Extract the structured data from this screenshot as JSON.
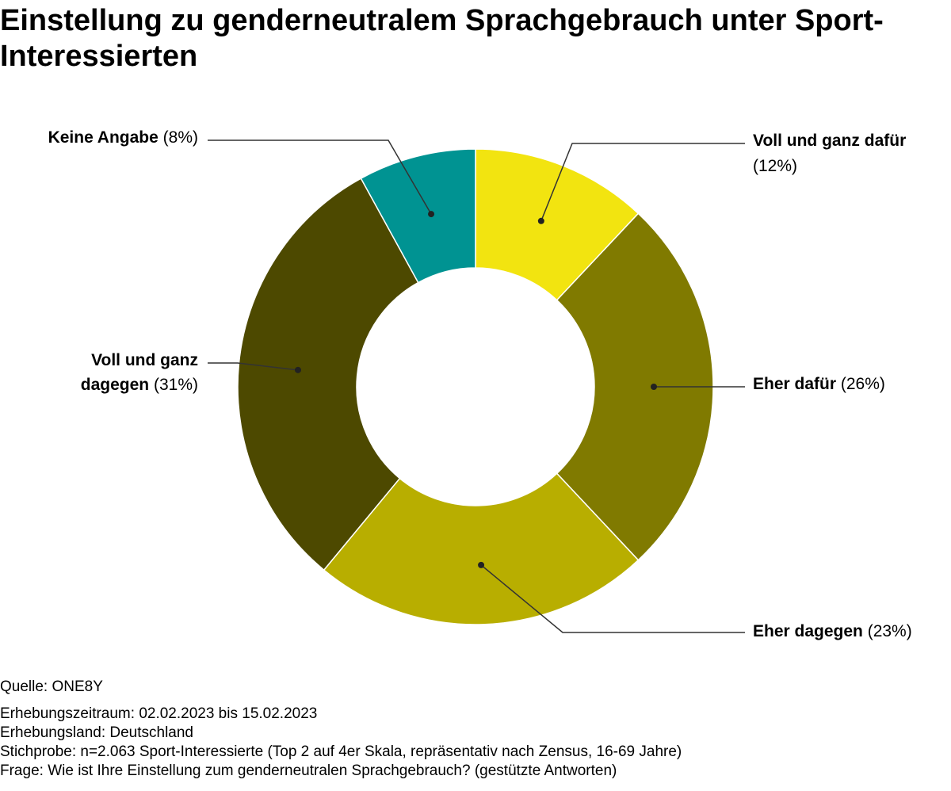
{
  "title": "Einstellung zu genderneutralem Sprachgebrauch unter Sport-Interessierten",
  "chart_data": {
    "type": "pie",
    "variant": "donut",
    "title": "Einstellung zu genderneutralem Sprachgebrauch unter Sport-Interessierten",
    "slices": [
      {
        "label": "Voll und ganz dafür",
        "value": 12,
        "value_text": "(12%)",
        "color": "#f2e410"
      },
      {
        "label": "Eher dafür",
        "value": 26,
        "value_text": "(26%)",
        "color": "#807a00"
      },
      {
        "label": "Eher dagegen",
        "value": 23,
        "value_text": "(23%)",
        "color": "#b8ae00"
      },
      {
        "label": "Voll und ganz dagegen",
        "value": 31,
        "value_text": "(31%)",
        "color": "#4d4900"
      },
      {
        "label": "Keine Angabe",
        "value": 8,
        "value_text": "(8%)",
        "color": "#009392"
      }
    ]
  },
  "footer": {
    "source": "Quelle: ONE8Y",
    "period": "Erhebungszeitraum: 02.02.2023 bis 15.02.2023",
    "country": "Erhebungsland: Deutschland",
    "sample": "Stichprobe: n=2.063 Sport-Interessierte (Top 2 auf 4er Skala, repräsentativ nach Zensus, 16-69 Jahre)",
    "question": "Frage: Wie ist Ihre Einstellung zum genderneutralen Sprachgebrauch? (gestützte Antworten)"
  }
}
